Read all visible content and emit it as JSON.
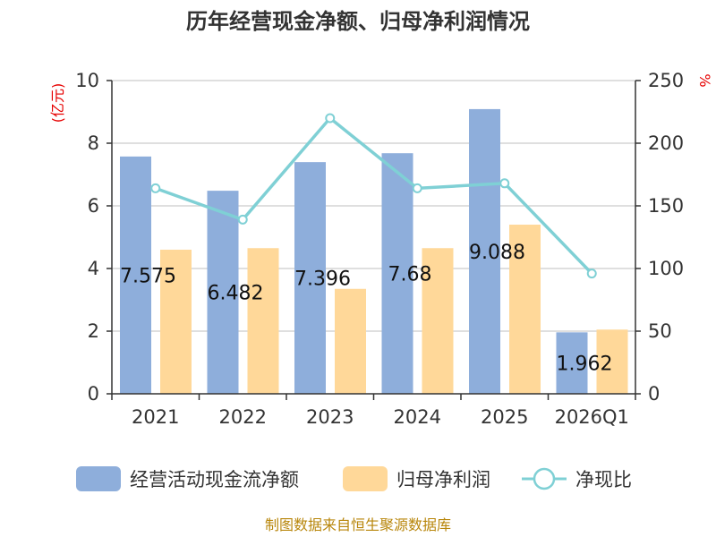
{
  "chart_data": {
    "type": "bar",
    "title": "历年经营现金净额、归母净利润情况",
    "categories": [
      "2021",
      "2022",
      "2023",
      "2024",
      "2025",
      "2026Q1"
    ],
    "series": [
      {
        "name": "经营活动现金流净额",
        "kind": "bar",
        "axis": "left",
        "color": "#8eaedb",
        "values": [
          7.575,
          6.482,
          7.396,
          7.68,
          9.088,
          1.962
        ],
        "labels": [
          "7.575",
          "6.482",
          "7.396",
          "7.68",
          "9.088",
          "1.962"
        ]
      },
      {
        "name": "归母净利润",
        "kind": "bar",
        "axis": "left",
        "color": "#ffd899",
        "values": [
          4.6,
          4.65,
          3.35,
          4.65,
          5.4,
          2.05
        ]
      },
      {
        "name": "净现比",
        "kind": "line",
        "axis": "right",
        "color": "#7fd0d5",
        "values": [
          164,
          139,
          220,
          164,
          168,
          96
        ]
      }
    ],
    "y_left": {
      "unit": "(亿元)",
      "ylim": [
        0,
        10
      ],
      "ticks": [
        "0",
        "2",
        "4",
        "6",
        "8",
        "10"
      ]
    },
    "y_right": {
      "unit": "%",
      "ylim": [
        0,
        250
      ],
      "ticks": [
        "0",
        "50",
        "100",
        "150",
        "200",
        "250"
      ]
    },
    "grid": true,
    "legend": "bottom",
    "source": "制图数据来自恒生聚源数据库"
  }
}
